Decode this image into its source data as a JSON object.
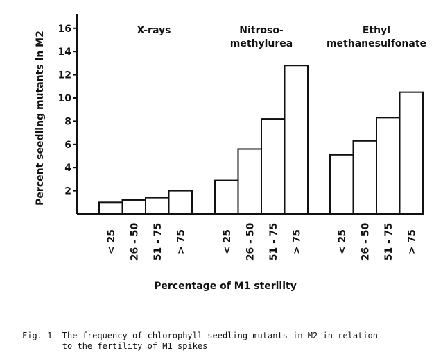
{
  "chart_data": {
    "type": "bar",
    "ylabel": "Percent seedling mutants in M2",
    "xlabel": "Percentage of M1 sterility",
    "ylim": [
      0,
      17
    ],
    "yticks": [
      2,
      4,
      6,
      8,
      10,
      12,
      14,
      16
    ],
    "categories": [
      "< 25",
      "26 - 50",
      "51 - 75",
      "> 75"
    ],
    "groups": [
      {
        "name": "X-rays",
        "values": [
          1.0,
          1.2,
          1.4,
          2.0
        ]
      },
      {
        "name": "Nitroso-methylurea",
        "values": [
          2.9,
          5.6,
          8.2,
          12.8
        ]
      },
      {
        "name": "Ethyl methanesulfonate",
        "values": [
          5.1,
          6.3,
          8.3,
          10.5
        ]
      }
    ],
    "grid": false,
    "legend": "none"
  },
  "group_labels": [
    {
      "lines": [
        "X-rays"
      ]
    },
    {
      "lines": [
        "Nitroso-",
        "methylurea"
      ]
    },
    {
      "lines": [
        "Ethyl",
        "methanesulfonate"
      ]
    }
  ],
  "caption": {
    "line1": "Fig. 1  The frequency of chlorophyll seedling mutants in M2 in relation",
    "line2": "        to the fertility of M1 spikes"
  }
}
